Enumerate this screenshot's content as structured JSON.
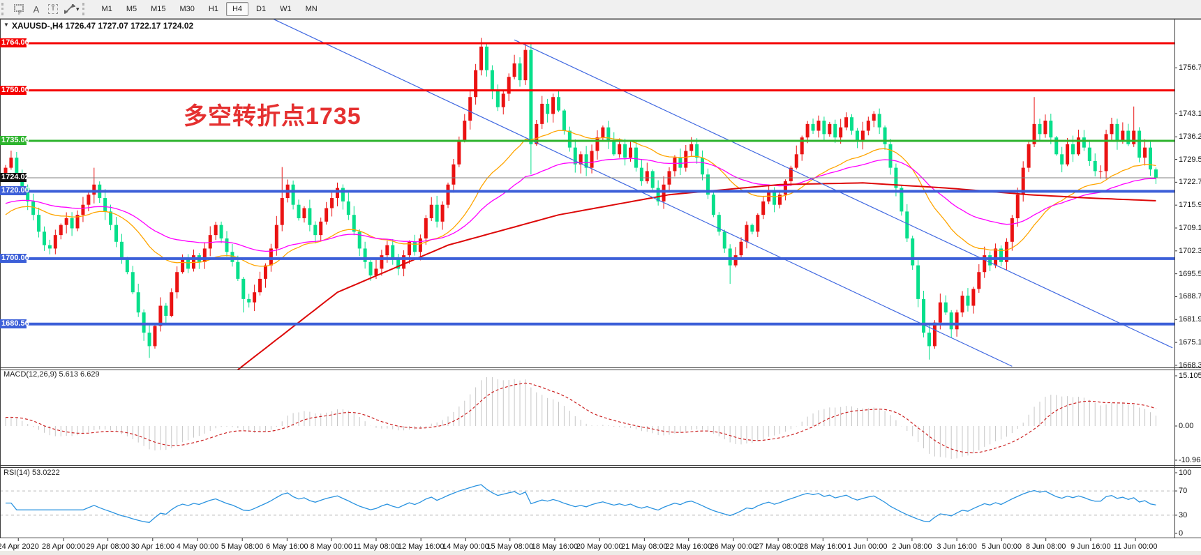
{
  "toolbar": {
    "timeframes": [
      "M1",
      "M5",
      "M15",
      "M30",
      "H1",
      "H4",
      "D1",
      "W1",
      "MN"
    ],
    "active": "H4",
    "tools": [
      "indicators-grid",
      "text-a",
      "text-box",
      "cursor-arrows"
    ]
  },
  "chart": {
    "title": "XAUUSD-,H4 1726.47 1727.07 1722.17 1724.02",
    "annotation": {
      "text": "多空转折点1735",
      "color": "#e53030"
    }
  },
  "chart_data": {
    "type": "candlestick",
    "symbol": "XAUUSD-",
    "timeframe": "H4",
    "last_ohlc": {
      "open": 1726.47,
      "high": 1727.07,
      "low": 1722.17,
      "close": 1724.02
    },
    "price_axis": {
      "min": 1667.3,
      "max": 1771.8,
      "ticks": [
        1756.7,
        1743.1,
        1736.2,
        1729.5,
        1722.7,
        1715.9,
        1709.1,
        1702.3,
        1695.5,
        1688.7,
        1681.9,
        1675.1,
        1668.3
      ]
    },
    "candle_colors": {
      "bull": "#ea1212",
      "bear": "#07df8b"
    },
    "closes": [
      1727,
      1730,
      1725,
      1721,
      1717,
      1713,
      1708,
      1704,
      1703,
      1707,
      1710,
      1712,
      1709,
      1713,
      1716,
      1719,
      1722,
      1718,
      1714,
      1710,
      1705,
      1700,
      1696,
      1690,
      1684,
      1678,
      1674,
      1680,
      1686,
      1683,
      1690,
      1696,
      1700,
      1697,
      1701,
      1699,
      1703,
      1707,
      1710,
      1706,
      1702,
      1699,
      1694,
      1688,
      1687,
      1690,
      1694,
      1698,
      1703,
      1710,
      1718,
      1722,
      1716,
      1712,
      1715,
      1710,
      1707,
      1711,
      1715,
      1718,
      1721,
      1717,
      1713,
      1708,
      1703,
      1699,
      1695,
      1697,
      1701,
      1704,
      1700,
      1697,
      1701,
      1705,
      1702,
      1706,
      1712,
      1716,
      1711,
      1716,
      1722,
      1728,
      1735,
      1741,
      1748,
      1756,
      1763,
      1756,
      1750,
      1745,
      1749,
      1754,
      1758,
      1753,
      1762,
      1734,
      1740,
      1746,
      1743,
      1748,
      1744,
      1738,
      1733,
      1728,
      1731,
      1727,
      1732,
      1736,
      1739,
      1735,
      1731,
      1734,
      1730,
      1733,
      1727,
      1723,
      1726,
      1721,
      1717,
      1722,
      1726,
      1730,
      1727,
      1732,
      1734,
      1730,
      1725,
      1719,
      1713,
      1708,
      1703,
      1698,
      1701,
      1705,
      1710,
      1708,
      1713,
      1717,
      1720,
      1716,
      1719,
      1723,
      1727,
      1731,
      1736,
      1740,
      1738,
      1741,
      1737,
      1740,
      1736,
      1739,
      1742,
      1738,
      1735,
      1738,
      1741,
      1743,
      1739,
      1734,
      1727,
      1721,
      1714,
      1706,
      1698,
      1688,
      1678,
      1674,
      1681,
      1687,
      1684,
      1679,
      1684,
      1689,
      1686,
      1691,
      1696,
      1701,
      1698,
      1703,
      1699,
      1705,
      1712,
      1719,
      1727,
      1734,
      1740,
      1737,
      1741,
      1736,
      1731,
      1728,
      1734,
      1731,
      1736,
      1733,
      1729,
      1726,
      1726,
      1737,
      1740,
      1735,
      1738,
      1734,
      1738,
      1730,
      1733,
      1726.5,
      1724.02
    ],
    "wick_overrides": {
      "16": {
        "high": 1727
      },
      "26": {
        "low": 1670.5
      },
      "43": {
        "low": 1684
      },
      "50": {
        "high": 1727.2
      },
      "86": {
        "high": 1765.6
      },
      "95": {
        "low": 1725
      },
      "131": {
        "low": 1692.5
      },
      "167": {
        "low": 1670
      },
      "186": {
        "high": 1748
      },
      "204": {
        "high": 1745.2
      },
      "208": {
        "high": 1727.07,
        "low": 1722.17
      }
    },
    "levels": [
      {
        "price": 1764.0,
        "label": "1764.00",
        "color": "#f40000",
        "width": 3,
        "badge_bg": "#f40000"
      },
      {
        "price": 1750.0,
        "label": "1750.00",
        "color": "#f40000",
        "width": 3,
        "badge_bg": "#f40000"
      },
      {
        "price": 1735.0,
        "label": "1735.00",
        "color": "#2db32d",
        "width": 3,
        "badge_bg": "#2db32d"
      },
      {
        "price": 1724.02,
        "label": "1724.02",
        "color": "#808080",
        "width": 1,
        "badge_bg": "#111111"
      },
      {
        "price": 1720.0,
        "label": "1720.00",
        "color": "#3c5fd8",
        "width": 4,
        "badge_bg": "#3c5fd8"
      },
      {
        "price": 1700.0,
        "label": "1700.00",
        "color": "#3c5fd8",
        "width": 4,
        "badge_bg": "#3c5fd8"
      },
      {
        "price": 1680.56,
        "label": "1680.56",
        "color": "#3c5fd8",
        "width": 4,
        "badge_bg": "#3c5fd8"
      }
    ],
    "trendlines": [
      {
        "from": [
          48,
          1771.5
        ],
        "to": [
          182,
          1668.0
        ],
        "color": "#4169e1"
      },
      {
        "from": [
          92,
          1765.0
        ],
        "to": [
          211,
          1673.5
        ],
        "color": "#4169e1"
      }
    ],
    "moving_averages": [
      {
        "name": "fast",
        "color": "#ffa500",
        "type": "ema",
        "period": 28,
        "seed": 1712
      },
      {
        "name": "mid",
        "color": "#ff00ff",
        "type": "ema",
        "period": 55,
        "seed": 1716
      },
      {
        "name": "slow",
        "color": "#dd0808",
        "width": 2,
        "anchors": [
          [
            42,
            1667
          ],
          [
            60,
            1690
          ],
          [
            80,
            1704
          ],
          [
            100,
            1713
          ],
          [
            120,
            1719
          ],
          [
            140,
            1722
          ],
          [
            155,
            1722.5
          ],
          [
            170,
            1721
          ],
          [
            185,
            1719
          ],
          [
            196,
            1718
          ],
          [
            208,
            1717.2
          ]
        ]
      }
    ],
    "x_labels": {
      "texts": [
        "24 Apr 2020",
        "28 Apr 00:00",
        "29 Apr 08:00",
        "30 Apr 16:00",
        "4 May 00:00",
        "5 May 08:00",
        "6 May 16:00",
        "8 May 00:00",
        "11 May 08:00",
        "12 May 16:00",
        "14 May 00:00",
        "15 May 08:00",
        "18 May 16:00",
        "20 May 00:00",
        "21 May 08:00",
        "22 May 16:00",
        "26 May 00:00",
        "27 May 08:00",
        "28 May 16:00",
        "1 Jun 00:00",
        "2 Jun 08:00",
        "3 Jun 16:00",
        "5 Jun 00:00",
        "8 Jun 08:00",
        "9 Jun 16:00",
        "11 Jun 00:00"
      ],
      "bars": [
        2.3,
        10.5,
        18.5,
        26.6,
        34.7,
        42.8,
        50.9,
        58.9,
        67.0,
        75.1,
        83.2,
        91.2,
        99.3,
        107.4,
        115.5,
        123.5,
        131.6,
        139.7,
        147.8,
        155.8,
        163.9,
        172.0,
        180.1,
        188.1,
        196.2,
        204.3
      ]
    },
    "macd": {
      "label_full": "MACD(12,26,9) 5.613 6.629",
      "fast": 12,
      "slow": 26,
      "signal": 9,
      "value": 5.613,
      "signal_value": 6.629,
      "scale_max": 15.105,
      "scale_min": -10.963,
      "scale_labels": [
        "15.105",
        "0.00",
        "-10.963"
      ],
      "histogram_color": "#c6c6c6",
      "signal_color": "#cc2222"
    },
    "rsi": {
      "label_full": "RSI(14) 53.0222",
      "period": 14,
      "value": 53.0222,
      "scale_labels": [
        "100",
        "70",
        "30",
        "0"
      ],
      "levels": [
        70,
        30
      ],
      "range": [
        0,
        100
      ],
      "color": "#2a93e0"
    }
  }
}
